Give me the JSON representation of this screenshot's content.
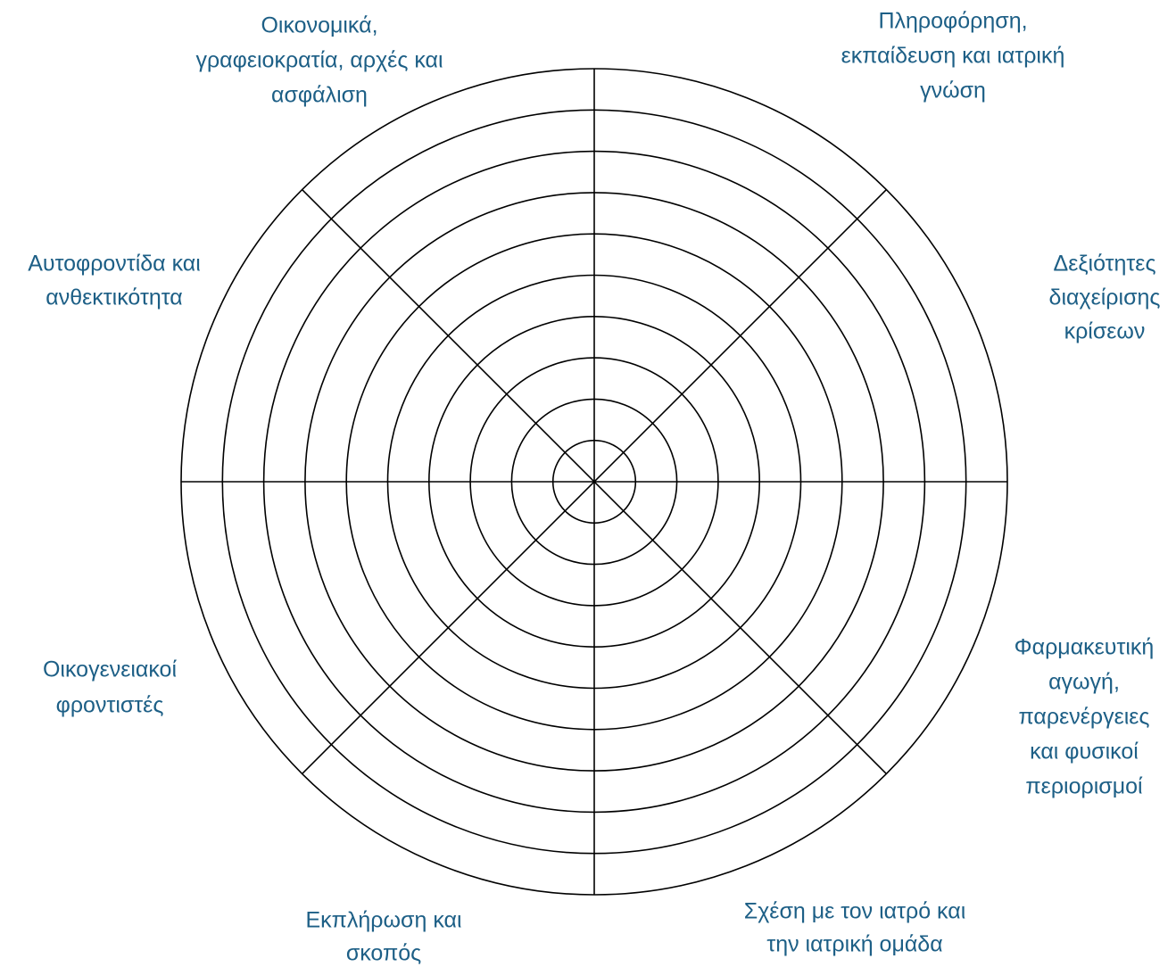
{
  "labels": [
    {
      "lines": [
        "Οικονομικά,",
        "γραφειοκρατία, αρχές και",
        "ασφάλιση"
      ]
    },
    {
      "lines": [
        "Πληροφόρηση,",
        "εκπαίδευση και ιατρική",
        "γνώση"
      ]
    },
    {
      "lines": [
        "Δεξιότητες",
        "διαχείρισης",
        "κρίσεων"
      ]
    },
    {
      "lines": [
        "Φαρμακευτική",
        "αγωγή,",
        "παρενέργειες",
        "και φυσικοί",
        "περιορισμοί"
      ]
    },
    {
      "lines": [
        "Σχέση με τον ιατρό και",
        "την ιατρική ομάδα"
      ]
    },
    {
      "lines": [
        "Εκπλήρωση και",
        "σκοπός"
      ]
    },
    {
      "lines": [
        "Οικογενειακοί",
        "φροντιστές"
      ]
    },
    {
      "lines": [
        "Αυτοφροντίδα και",
        "ανθεκτικότητα"
      ]
    }
  ]
}
